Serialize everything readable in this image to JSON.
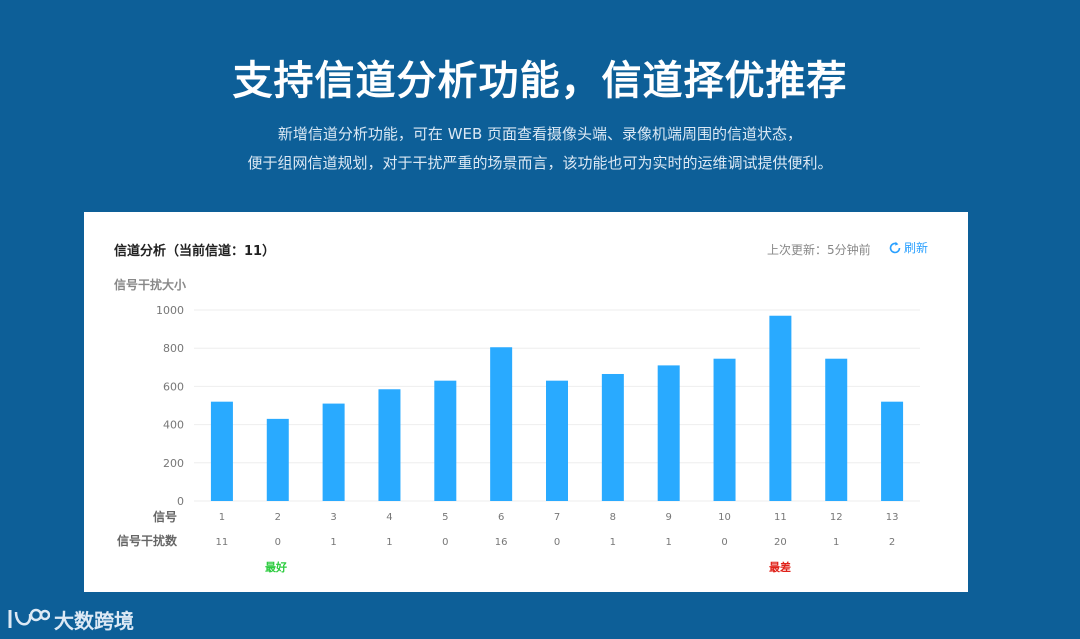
{
  "header": {
    "title": "支持信道分析功能，信道择优推荐",
    "desc_line1": "新增信道分析功能，可在 WEB 页面查看摄像头端、录像机端周围的信道状态，",
    "desc_line2": "便于组网信道规划，对于干扰严重的场景而言，该功能也可为实时的运维调试提供便利。"
  },
  "card": {
    "title": "信道分析（当前信道：11）",
    "last_update": "上次更新：5分钟前",
    "refresh_label": "刷新",
    "y_title": "信号干扰大小",
    "row_channel_label": "信号",
    "row_count_label": "信号干扰数",
    "best_label": "最好",
    "worst_label": "最差"
  },
  "colors": {
    "background": "#0d5f98",
    "bar": "#29aaff",
    "best": "#2ecc40",
    "worst": "#e0221a",
    "refresh": "#2aa0ff"
  },
  "chart_data": {
    "type": "bar",
    "title": "信道分析（当前信道：11）",
    "ylabel": "信号干扰大小",
    "xlabel": "信号",
    "ylim": [
      0,
      1000
    ],
    "yticks": [
      0,
      200,
      400,
      600,
      800,
      1000
    ],
    "categories": [
      "1",
      "2",
      "3",
      "4",
      "5",
      "6",
      "7",
      "8",
      "9",
      "10",
      "11",
      "12",
      "13"
    ],
    "values": [
      520,
      430,
      510,
      585,
      630,
      805,
      630,
      665,
      710,
      745,
      970,
      745,
      520
    ],
    "interference_counts": [
      "11",
      "0",
      "1",
      "1",
      "0",
      "16",
      "0",
      "1",
      "1",
      "0",
      "20",
      "1",
      "2"
    ],
    "best_channel": "2",
    "worst_channel": "11",
    "grid": true
  },
  "brand": {
    "logo_text": "100",
    "name": "大数跨境"
  }
}
